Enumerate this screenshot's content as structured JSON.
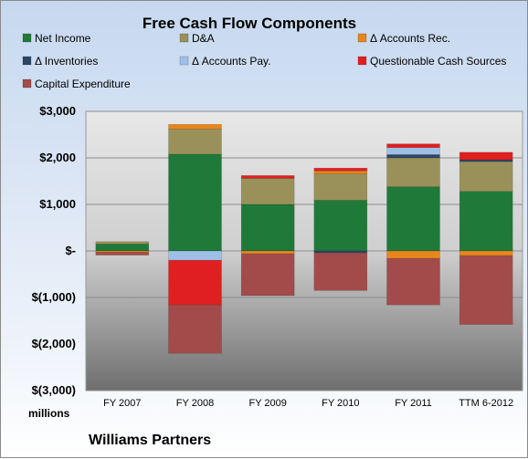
{
  "chart_data": {
    "type": "bar",
    "stacked": true,
    "title": "Free Cash Flow Components",
    "units_label": "millions",
    "footer": "Williams Partners",
    "categories": [
      "FY 2007",
      "FY 2008",
      "FY 2009",
      "FY 2010",
      "FY 2011",
      "TTM 6-2012"
    ],
    "ylim": [
      -3000,
      3000
    ],
    "yticks": [
      3000,
      2000,
      1000,
      0,
      -1000,
      -2000,
      -3000
    ],
    "ytick_labels": [
      "$3,000",
      "$2,000",
      "$1,000",
      "$-",
      "$(1,000)",
      "$(2,000)",
      "$(3,000)"
    ],
    "grid": true,
    "legend": "top",
    "series": [
      {
        "name": "Net Income",
        "color": "#1f7a3a",
        "values": [
          150,
          2080,
          1000,
          1090,
          1380,
          1280
        ]
      },
      {
        "name": "D&A",
        "color": "#9a915a",
        "values": [
          50,
          540,
          560,
          570,
          620,
          640
        ]
      },
      {
        "name": "Δ Accounts Rec.",
        "color": "#e8861c",
        "values": [
          -30,
          100,
          -60,
          60,
          -160,
          -100
        ]
      },
      {
        "name": "Δ Inventories",
        "color": "#2d4666",
        "values": [
          0,
          0,
          0,
          -40,
          70,
          40
        ]
      },
      {
        "name": "Δ Accounts Pay.",
        "color": "#9fc0e6",
        "values": [
          0,
          -200,
          0,
          0,
          150,
          0
        ]
      },
      {
        "name": "Questionable Cash Sources",
        "color": "#e02020",
        "values": [
          0,
          -960,
          60,
          60,
          80,
          160
        ]
      },
      {
        "name": "Capital Expenditure",
        "color": "#a34b4b",
        "values": [
          -60,
          -1040,
          -900,
          -810,
          -1000,
          -1480
        ]
      }
    ]
  }
}
